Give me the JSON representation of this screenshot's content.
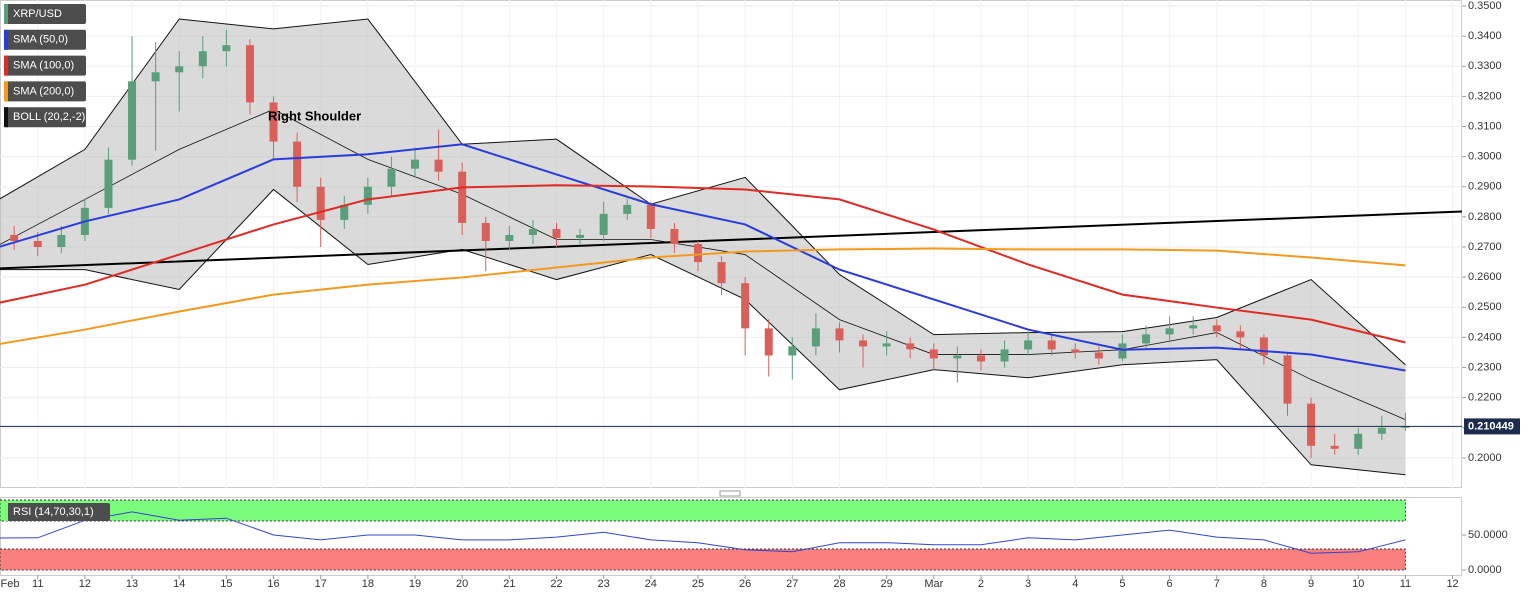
{
  "chart_data": [
    {
      "type": "candlestick",
      "name": "XRP/USD",
      "up_color": "#5a9e7c",
      "down_color": "#d9605a",
      "x": [
        0.5,
        1,
        1.5,
        2,
        2.5,
        3,
        3.5,
        4,
        4.5,
        5,
        5.5,
        6,
        6.5,
        7,
        7.5,
        8,
        8.5,
        9,
        9.5,
        10,
        10.5,
        11,
        11.5,
        12,
        12.5,
        13,
        13.5,
        14,
        14.5,
        15,
        15.5,
        16,
        16.5,
        17,
        17.5,
        18,
        18.5,
        19,
        19.5,
        20,
        20.5,
        21,
        21.5,
        22,
        22.5,
        23,
        23.5,
        24,
        24.5,
        25,
        25.5,
        26,
        26.5,
        27,
        27.5,
        28,
        28.5,
        29,
        29.5,
        30
      ],
      "open": [
        0.274,
        0.272,
        0.27,
        0.274,
        0.283,
        0.299,
        0.325,
        0.328,
        0.33,
        0.335,
        0.337,
        0.318,
        0.305,
        0.29,
        0.279,
        0.284,
        0.29,
        0.296,
        0.299,
        0.295,
        0.278,
        0.272,
        0.274,
        0.276,
        0.273,
        0.274,
        0.281,
        0.284,
        0.276,
        0.271,
        0.265,
        0.258,
        0.243,
        0.234,
        0.237,
        0.243,
        0.239,
        0.237,
        0.238,
        0.236,
        0.233,
        0.234,
        0.232,
        0.236,
        0.239,
        0.236,
        0.235,
        0.233,
        0.238,
        0.241,
        0.243,
        0.244,
        0.242,
        0.24,
        0.234,
        0.218,
        0.204,
        0.203,
        0.208,
        0.21
      ],
      "high": [
        0.277,
        0.275,
        0.277,
        0.286,
        0.303,
        0.34,
        0.338,
        0.335,
        0.34,
        0.342,
        0.339,
        0.32,
        0.308,
        0.293,
        0.287,
        0.293,
        0.3,
        0.303,
        0.309,
        0.298,
        0.28,
        0.277,
        0.279,
        0.278,
        0.276,
        0.285,
        0.286,
        0.285,
        0.278,
        0.272,
        0.267,
        0.26,
        0.246,
        0.24,
        0.248,
        0.245,
        0.241,
        0.242,
        0.24,
        0.238,
        0.237,
        0.236,
        0.239,
        0.242,
        0.241,
        0.238,
        0.237,
        0.241,
        0.244,
        0.247,
        0.247,
        0.246,
        0.244,
        0.241,
        0.235,
        0.22,
        0.208,
        0.21,
        0.214,
        0.215
      ],
      "low": [
        0.269,
        0.267,
        0.268,
        0.272,
        0.281,
        0.297,
        0.302,
        0.315,
        0.326,
        0.33,
        0.314,
        0.299,
        0.285,
        0.27,
        0.276,
        0.281,
        0.287,
        0.293,
        0.292,
        0.274,
        0.262,
        0.269,
        0.271,
        0.27,
        0.271,
        0.272,
        0.279,
        0.273,
        0.268,
        0.262,
        0.254,
        0.234,
        0.227,
        0.226,
        0.234,
        0.235,
        0.23,
        0.234,
        0.233,
        0.229,
        0.225,
        0.229,
        0.23,
        0.234,
        0.234,
        0.233,
        0.231,
        0.232,
        0.236,
        0.239,
        0.241,
        0.24,
        0.236,
        0.231,
        0.214,
        0.2,
        0.201,
        0.201,
        0.206,
        0.209
      ],
      "close": [
        0.272,
        0.27,
        0.274,
        0.283,
        0.299,
        0.325,
        0.328,
        0.33,
        0.335,
        0.337,
        0.318,
        0.305,
        0.29,
        0.279,
        0.284,
        0.29,
        0.296,
        0.299,
        0.295,
        0.278,
        0.272,
        0.274,
        0.276,
        0.273,
        0.274,
        0.281,
        0.284,
        0.276,
        0.271,
        0.265,
        0.258,
        0.243,
        0.234,
        0.237,
        0.243,
        0.239,
        0.237,
        0.238,
        0.236,
        0.233,
        0.234,
        0.232,
        0.236,
        0.239,
        0.236,
        0.235,
        0.233,
        0.238,
        0.241,
        0.243,
        0.244,
        0.242,
        0.24,
        0.234,
        0.218,
        0.204,
        0.203,
        0.208,
        0.21,
        0.2104
      ],
      "lines": [
        {
          "name": "SMA (50,0)",
          "color": "#2a3bdc",
          "x": [
            0,
            2,
            4,
            6,
            8,
            10,
            12,
            14,
            16,
            18,
            20,
            22,
            24,
            26,
            28,
            30
          ],
          "values": [
            0.2692,
            0.2785,
            0.2858,
            0.2991,
            0.3008,
            0.3041,
            0.2941,
            0.2842,
            0.2775,
            0.2625,
            0.2526,
            0.2426,
            0.2359,
            0.2366,
            0.2343,
            0.229
          ]
        },
        {
          "name": "SMA (100,0)",
          "color": "#e02a25",
          "x": [
            0,
            2,
            4,
            6,
            8,
            10,
            12,
            14,
            16,
            18,
            20,
            22,
            24,
            26,
            28,
            30
          ],
          "values": [
            0.2509,
            0.2575,
            0.2675,
            0.2775,
            0.2858,
            0.2898,
            0.2905,
            0.2901,
            0.2891,
            0.2858,
            0.2758,
            0.2642,
            0.2542,
            0.2499,
            0.2459,
            0.2383
          ]
        },
        {
          "name": "SMA (200,0)",
          "color": "#f39a1e",
          "x": [
            0,
            2,
            4,
            6,
            8,
            10,
            12,
            14,
            16,
            18,
            20,
            22,
            24,
            26,
            28,
            30
          ],
          "values": [
            0.2373,
            0.2426,
            0.2486,
            0.2542,
            0.2575,
            0.2599,
            0.2632,
            0.2665,
            0.2685,
            0.2692,
            0.2695,
            0.2692,
            0.2692,
            0.2688,
            0.2665,
            0.2639
          ]
        }
      ],
      "bollinger": {
        "name": "BOLL (20,2,-2)",
        "color": "#111111",
        "x": [
          0,
          2,
          4,
          6,
          8,
          10,
          12,
          14,
          16,
          18,
          20,
          22,
          24,
          26,
          28,
          30
        ],
        "upper": [
          0.2842,
          0.3024,
          0.3457,
          0.3424,
          0.3457,
          0.3041,
          0.3058,
          0.2842,
          0.2931,
          0.2609,
          0.2409,
          0.2416,
          0.2419,
          0.2466,
          0.2592,
          0.2309
        ],
        "middle": [
          0.2692,
          0.2858,
          0.3024,
          0.3157,
          0.2991,
          0.2875,
          0.2725,
          0.2725,
          0.2675,
          0.2459,
          0.2343,
          0.2343,
          0.2359,
          0.2416,
          0.226,
          0.2127
        ],
        "lower": [
          0.2625,
          0.2625,
          0.2559,
          0.2891,
          0.2642,
          0.2692,
          0.2592,
          0.2675,
          0.2526,
          0.2226,
          0.2293,
          0.2266,
          0.2309,
          0.2326,
          0.1977,
          0.1944
        ]
      },
      "trendline": {
        "color": "#000000",
        "x": [
          0.2,
          31.2
        ],
        "values": [
          0.2629,
          0.2818
        ]
      },
      "annotation": "Right Shoulder",
      "last_price": 0.210449,
      "ylim": [
        0.19,
        0.352
      ],
      "yticks": [
        {
          "value": 0.2,
          "label": "0.2000"
        },
        {
          "value": 0.21,
          "label": "0.2100"
        },
        {
          "value": 0.22,
          "label": "0.2200"
        },
        {
          "value": 0.23,
          "label": "0.2300"
        },
        {
          "value": 0.24,
          "label": "0.2400"
        },
        {
          "value": 0.25,
          "label": "0.2500"
        },
        {
          "value": 0.26,
          "label": "0.2600"
        },
        {
          "value": 0.27,
          "label": "0.2700"
        },
        {
          "value": 0.28,
          "label": "0.2800"
        },
        {
          "value": 0.29,
          "label": "0.2900"
        },
        {
          "value": 0.3,
          "label": "0.3000"
        },
        {
          "value": 0.31,
          "label": "0.3100"
        },
        {
          "value": 0.32,
          "label": "0.3200"
        },
        {
          "value": 0.33,
          "label": "0.3300"
        },
        {
          "value": 0.34,
          "label": "0.3400"
        },
        {
          "value": 0.35,
          "label": "0.3500"
        }
      ],
      "xlim": [
        0.2,
        31.2
      ],
      "xticks": [
        {
          "value": 0,
          "label": "Feb"
        },
        {
          "value": 1,
          "label": "11"
        },
        {
          "value": 2,
          "label": "12"
        },
        {
          "value": 3,
          "label": "13"
        },
        {
          "value": 4,
          "label": "14"
        },
        {
          "value": 5,
          "label": "15"
        },
        {
          "value": 6,
          "label": "16"
        },
        {
          "value": 7,
          "label": "17"
        },
        {
          "value": 8,
          "label": "18"
        },
        {
          "value": 9,
          "label": "19"
        },
        {
          "value": 10,
          "label": "20"
        },
        {
          "value": 11,
          "label": "21"
        },
        {
          "value": 12,
          "label": "22"
        },
        {
          "value": 13,
          "label": "23"
        },
        {
          "value": 14,
          "label": "24"
        },
        {
          "value": 15,
          "label": "25"
        },
        {
          "value": 16,
          "label": "26"
        },
        {
          "value": 17,
          "label": "27"
        },
        {
          "value": 18,
          "label": "28"
        },
        {
          "value": 19,
          "label": "29"
        },
        {
          "value": 20,
          "label": "Mar"
        },
        {
          "value": 21,
          "label": "2"
        },
        {
          "value": 22,
          "label": "3"
        },
        {
          "value": 23,
          "label": "4"
        },
        {
          "value": 24,
          "label": "5"
        },
        {
          "value": 25,
          "label": "6"
        },
        {
          "value": 26,
          "label": "7"
        },
        {
          "value": 27,
          "label": "8"
        },
        {
          "value": 28,
          "label": "9"
        },
        {
          "value": 29,
          "label": "10"
        },
        {
          "value": 30,
          "label": "11"
        },
        {
          "value": 31,
          "label": "12"
        }
      ]
    },
    {
      "type": "line",
      "name": "RSI (14,70,30,1)",
      "color": "#3344cc",
      "x": [
        0,
        1,
        2,
        3,
        4,
        5,
        6,
        7,
        8,
        9,
        10,
        11,
        12,
        13,
        14,
        15,
        16,
        17,
        18,
        19,
        20,
        21,
        22,
        23,
        24,
        25,
        26,
        27,
        28,
        29,
        30
      ],
      "values": [
        45.7,
        46,
        71,
        83,
        71,
        74,
        50,
        43,
        50,
        50,
        43,
        43,
        47,
        54,
        43,
        39,
        29,
        26,
        39,
        39,
        36,
        36,
        46,
        43,
        50,
        57,
        47,
        43,
        24,
        26,
        43
      ],
      "levels": [
        70,
        30
      ],
      "upper_color": "#7cfc7c",
      "lower_color": "#fa8080",
      "ylim": [
        0,
        100
      ],
      "xlim": [
        0.2,
        31.2
      ],
      "yticks": [
        {
          "value": 50,
          "label": "50.0000"
        },
        {
          "value": 0,
          "label": "0.0000"
        }
      ]
    }
  ]
}
